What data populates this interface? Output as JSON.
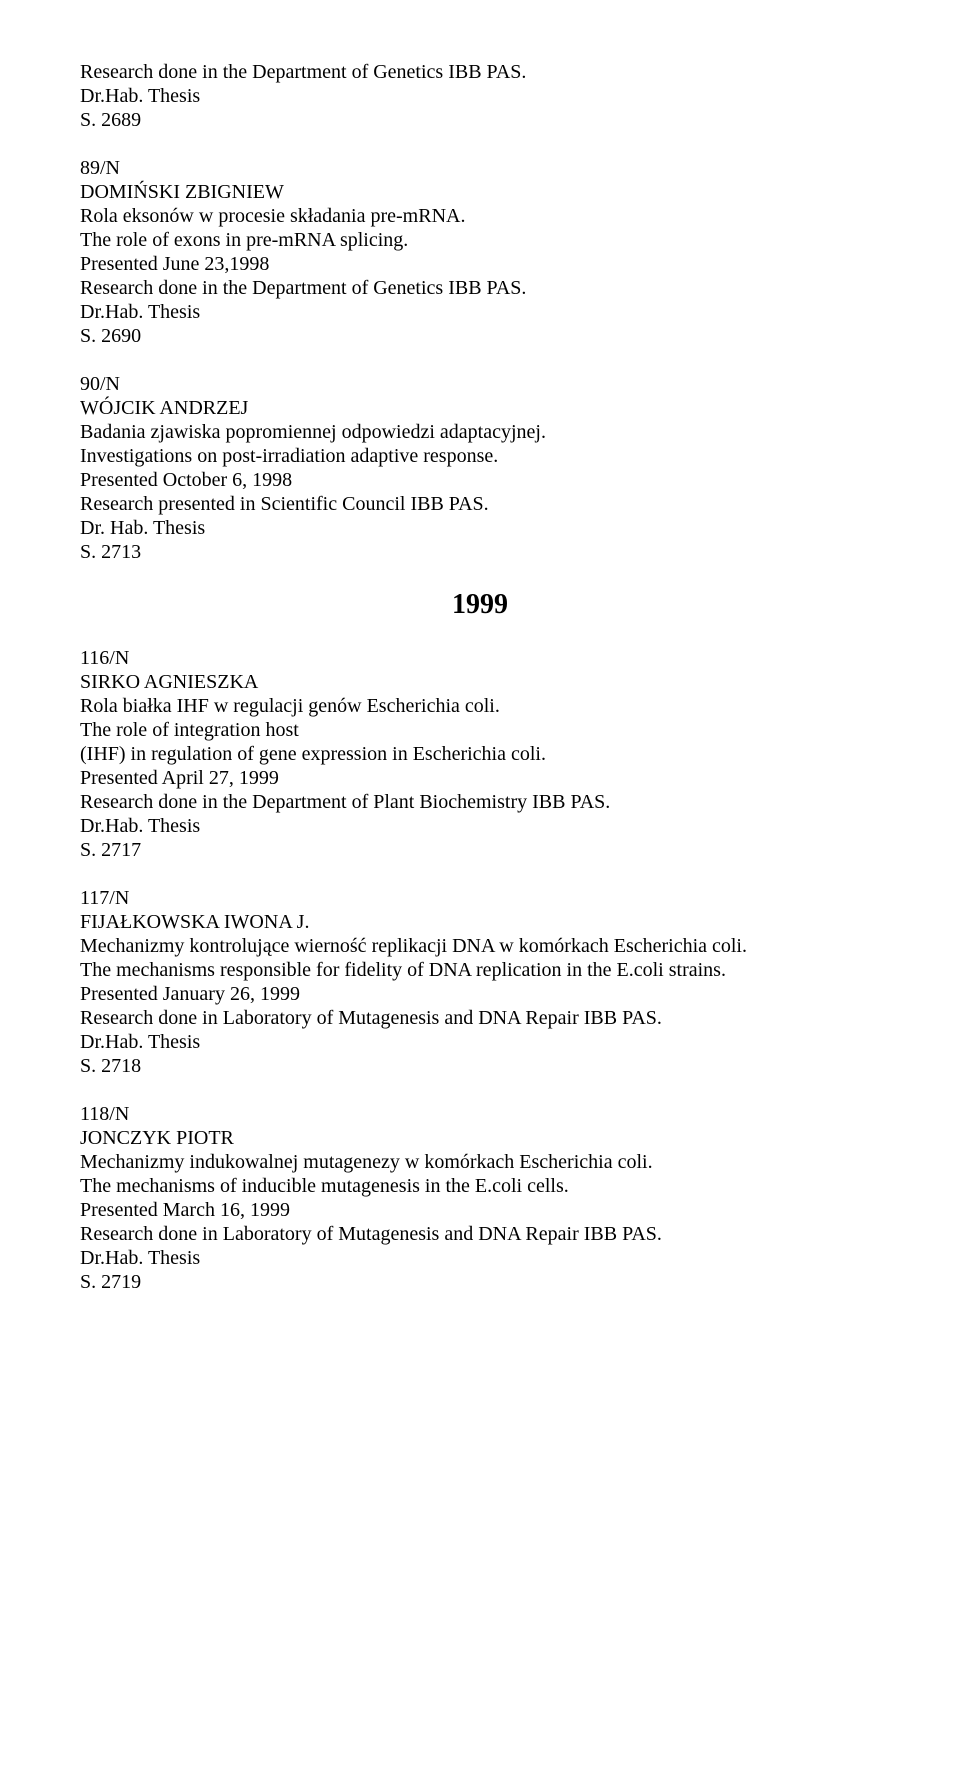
{
  "entries": [
    {
      "id": "entry-88",
      "lines": [
        "Research done in the Department of Genetics IBB PAS.",
        "Dr.Hab. Thesis",
        "S. 2689"
      ]
    },
    {
      "id": "entry-89",
      "lines": [
        "89/N",
        "DOMIŃSKI ZBIGNIEW",
        "Rola eksonów w procesie składania pre-mRNA.",
        "The role of exons in pre-mRNA splicing.",
        "Presented June 23,1998",
        "Research done in the Department of Genetics IBB PAS.",
        "Dr.Hab. Thesis",
        "S. 2690"
      ]
    },
    {
      "id": "entry-90",
      "lines": [
        "90/N",
        "WÓJCIK ANDRZEJ",
        "Badania zjawiska popromiennej odpowiedzi adaptacyjnej.",
        "Investigations on post-irradiation adaptive response.",
        "Presented October 6, 1998",
        "Research presented in Scientific Council IBB PAS.",
        "Dr. Hab. Thesis",
        "S. 2713"
      ]
    }
  ],
  "year": "1999",
  "entries2": [
    {
      "id": "entry-116",
      "lines": [
        "116/N",
        "SIRKO AGNIESZKA",
        "Rola białka IHF w regulacji genów Escherichia coli.",
        "The role of integration host",
        "(IHF) in regulation of gene expression in Escherichia coli.",
        "Presented April 27, 1999",
        "Research done in the Department of Plant Biochemistry IBB PAS.",
        "Dr.Hab. Thesis",
        "S. 2717"
      ]
    },
    {
      "id": "entry-117",
      "lines": [
        "117/N",
        "FIJAŁKOWSKA IWONA J.",
        "Mechanizmy kontrolujące wierność replikacji DNA w komórkach Escherichia coli.",
        "The mechanisms responsible for fidelity of DNA replication in the E.coli strains.",
        "Presented January 26, 1999",
        "Research done in Laboratory of Mutagenesis and DNA Repair IBB PAS.",
        "Dr.Hab. Thesis",
        "S. 2718"
      ]
    },
    {
      "id": "entry-118",
      "lines": [
        "118/N",
        "JONCZYK PIOTR",
        "Mechanizmy indukowalnej mutagenezy w komórkach Escherichia coli.",
        "The mechanisms of inducible mutagenesis in the E.coli cells.",
        "Presented March 16, 1999",
        "Research done in Laboratory of Mutagenesis and DNA Repair IBB PAS.",
        "Dr.Hab. Thesis",
        "S. 2719"
      ]
    }
  ]
}
